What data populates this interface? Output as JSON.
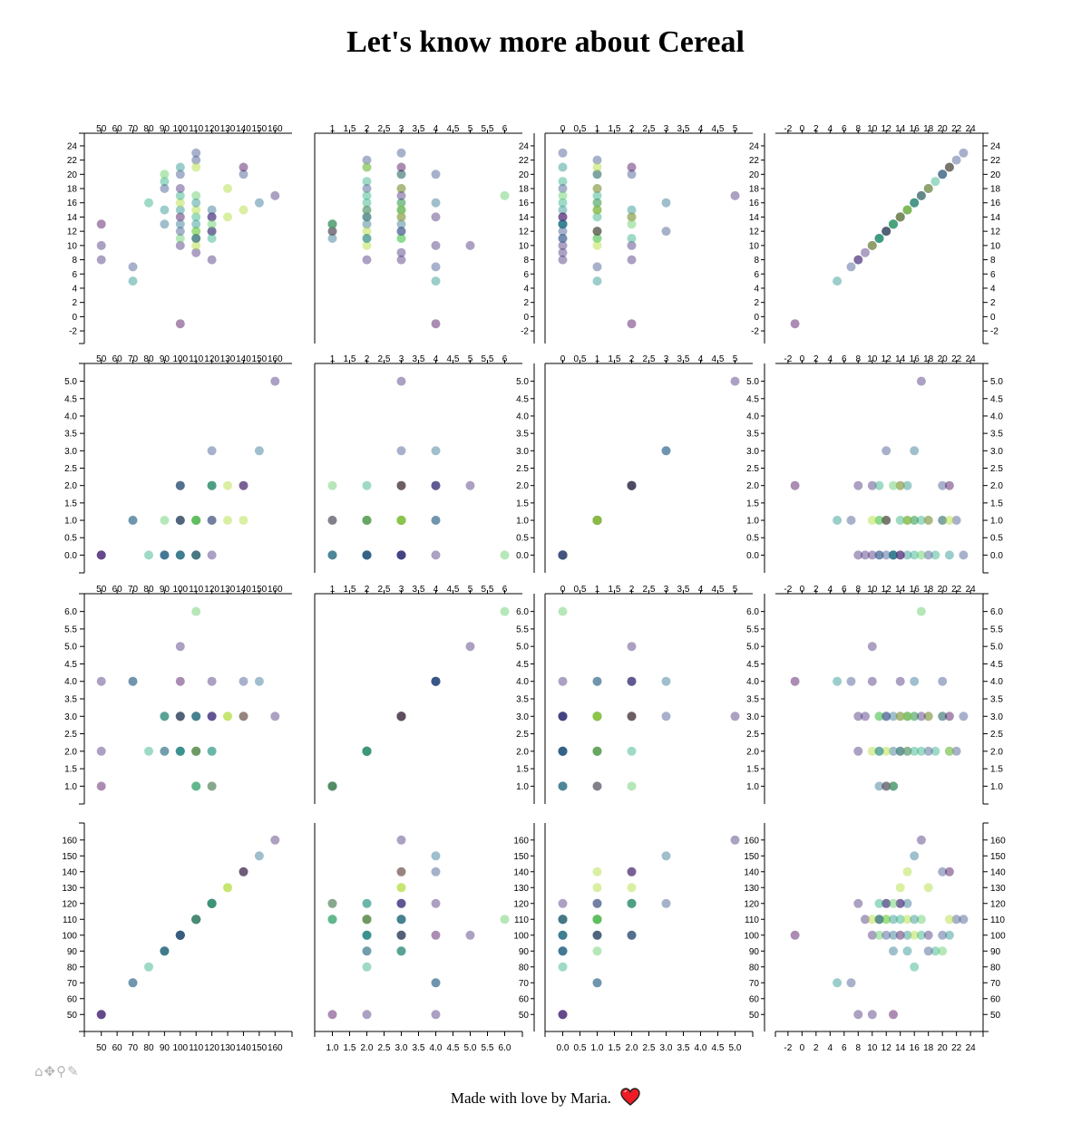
{
  "page": {
    "title": "Let's know more about Cereal",
    "footer": "Made with love by Maria."
  },
  "toolbar": {
    "home_icon": "home-icon",
    "pan_icon": "pan-icon",
    "zoom_icon": "zoom-icon",
    "brush_icon": "brush-icon"
  },
  "colors": {
    "viridis": [
      "#440154",
      "#472d7b",
      "#3b528b",
      "#2c728e",
      "#21918c",
      "#28ae80",
      "#5ec962",
      "#addc30"
    ],
    "point_opacity": 0.45
  },
  "chart_data": {
    "type": "scatter",
    "layout": "scatter-matrix",
    "variables": [
      {
        "key": "rating",
        "ticks": [
          -2,
          0,
          2,
          4,
          6,
          8,
          10,
          12,
          14,
          16,
          18,
          20,
          22,
          24
        ],
        "tick_labels": [
          "-2",
          "0",
          "2",
          "4",
          "6",
          "8",
          "10",
          "12",
          "14",
          "16",
          "18",
          "20",
          "22",
          "24"
        ],
        "range": [
          -2.5,
          24.5
        ]
      },
      {
        "key": "sugars",
        "ticks": [
          0,
          0.5,
          1,
          1.5,
          2,
          2.5,
          3,
          3.5,
          4,
          4.5,
          5
        ],
        "tick_labels": [
          "0.0",
          "0.5",
          "1.0",
          "1.5",
          "2.0",
          "2.5",
          "3.0",
          "3.5",
          "4.0",
          "4.5",
          "5.0"
        ],
        "range": [
          -0.25,
          5.25
        ]
      },
      {
        "key": "protein",
        "ticks": [
          1,
          1.5,
          2,
          2.5,
          3,
          3.5,
          4,
          4.5,
          5,
          5.5,
          6
        ],
        "tick_labels": [
          "1.0",
          "1.5",
          "2.0",
          "2.5",
          "3.0",
          "3.5",
          "4.0",
          "4.5",
          "5.0",
          "5.5",
          "6.0"
        ],
        "range": [
          0.75,
          6.25
        ]
      },
      {
        "key": "calories",
        "ticks": [
          50,
          60,
          70,
          80,
          90,
          100,
          110,
          120,
          130,
          140,
          150,
          160
        ],
        "tick_labels": [
          "50",
          "60",
          "70",
          "80",
          "90",
          "100",
          "110",
          "120",
          "130",
          "140",
          "150",
          "160"
        ],
        "range": [
          45,
          165
        ]
      }
    ],
    "rows": [
      "rating",
      "sugars",
      "protein",
      "calories"
    ],
    "cols": [
      "calories",
      "protein",
      "sugars",
      "rating"
    ],
    "points": [
      [
        50,
        1,
        0,
        13,
        0
      ],
      [
        50,
        2,
        0,
        8,
        1
      ],
      [
        50,
        4,
        0,
        10,
        1
      ],
      [
        70,
        4,
        1,
        5,
        4
      ],
      [
        70,
        4,
        1,
        7,
        2
      ],
      [
        80,
        2,
        0,
        16,
        5
      ],
      [
        90,
        2,
        0,
        19,
        5
      ],
      [
        90,
        3,
        0,
        15,
        4
      ],
      [
        90,
        3,
        1,
        20,
        6
      ],
      [
        90,
        3,
        0,
        13,
        3
      ],
      [
        90,
        2,
        0,
        18,
        2
      ],
      [
        100,
        2,
        0,
        14,
        0
      ],
      [
        100,
        5,
        2,
        10,
        1
      ],
      [
        100,
        3,
        1,
        11,
        6
      ],
      [
        100,
        3,
        0,
        12,
        2
      ],
      [
        100,
        4,
        2,
        -1,
        0
      ],
      [
        100,
        3,
        2,
        15,
        4
      ],
      [
        100,
        3,
        1,
        16,
        7
      ],
      [
        100,
        2,
        0,
        13,
        3
      ],
      [
        100,
        2,
        1,
        17,
        5
      ],
      [
        100,
        3,
        1,
        20,
        2
      ],
      [
        100,
        2,
        0,
        21,
        4
      ],
      [
        100,
        3,
        1,
        18,
        1
      ],
      [
        110,
        1,
        0,
        11,
        3
      ],
      [
        110,
        2,
        1,
        22,
        2
      ],
      [
        110,
        2,
        1,
        12,
        7
      ],
      [
        110,
        3,
        1,
        11,
        6
      ],
      [
        110,
        3,
        0,
        9,
        1
      ],
      [
        110,
        2,
        1,
        10,
        7
      ],
      [
        110,
        1,
        0,
        13,
        4
      ],
      [
        110,
        2,
        1,
        14,
        5
      ],
      [
        110,
        2,
        1,
        21,
        7
      ],
      [
        110,
        3,
        0,
        23,
        2
      ],
      [
        110,
        6,
        0,
        17,
        6
      ],
      [
        110,
        2,
        1,
        15,
        7
      ],
      [
        110,
        3,
        1,
        16,
        4
      ],
      [
        110,
        1,
        1,
        12,
        6
      ],
      [
        110,
        2,
        0,
        11,
        2
      ],
      [
        120,
        1,
        1,
        12,
        0
      ],
      [
        120,
        4,
        2,
        14,
        1
      ],
      [
        120,
        3,
        3,
        12,
        2
      ],
      [
        120,
        3,
        2,
        8,
        1
      ],
      [
        120,
        2,
        1,
        15,
        3
      ],
      [
        120,
        3,
        0,
        14,
        1
      ],
      [
        120,
        1,
        2,
        13,
        6
      ],
      [
        120,
        2,
        2,
        11,
        5
      ],
      [
        130,
        3,
        2,
        14,
        7
      ],
      [
        130,
        3,
        1,
        18,
        7
      ],
      [
        140,
        3,
        1,
        15,
        7
      ],
      [
        140,
        4,
        2,
        20,
        2
      ],
      [
        140,
        3,
        2,
        21,
        0
      ],
      [
        150,
        4,
        3,
        16,
        3
      ],
      [
        160,
        3,
        5,
        17,
        1
      ]
    ]
  }
}
